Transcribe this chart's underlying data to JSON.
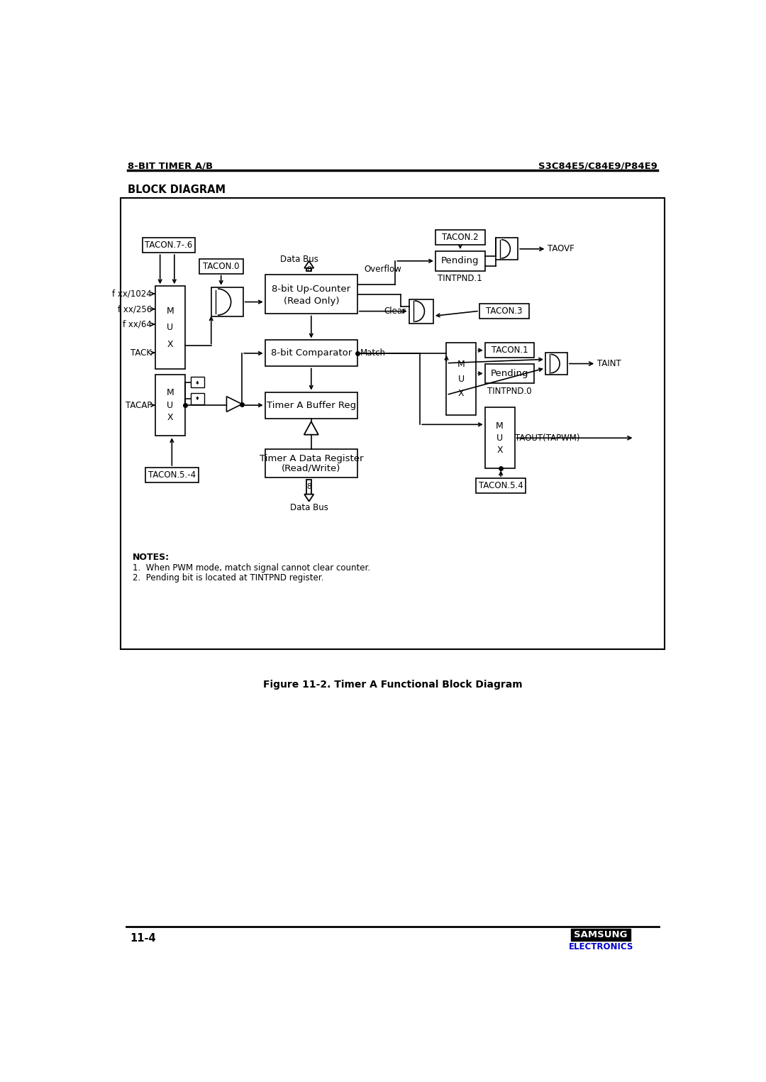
{
  "page_title_left": "8-BIT TIMER A/B",
  "page_title_right": "S3C84E5/C84E9/P84E9",
  "section_title": "BLOCK DIAGRAM",
  "figure_caption": "Figure 11-2. Timer A Functional Block Diagram",
  "page_number": "11-4",
  "notes_title": "NOTES:",
  "note1": "1.  When PWM mode, match signal cannot clear counter.",
  "note2": "2.  Pending bit is located at TINTPND register.",
  "samsung_text": "SAMSUNG",
  "electronics_text": "ELECTRONICS",
  "samsung_color": "#0000cc",
  "bg_color": "#ffffff"
}
